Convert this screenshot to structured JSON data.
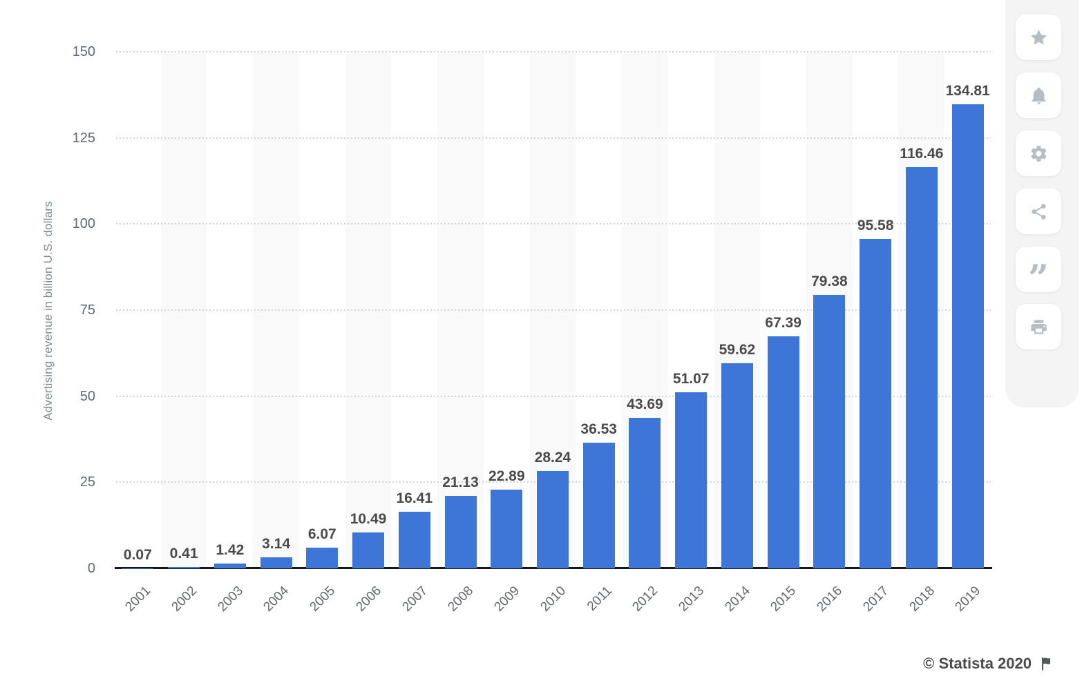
{
  "chart_data": {
    "type": "bar",
    "title": "",
    "categories": [
      "2001",
      "2002",
      "2003",
      "2004",
      "2005",
      "2006",
      "2007",
      "2008",
      "2009",
      "2010",
      "2011",
      "2012",
      "2013",
      "2014",
      "2015",
      "2016",
      "2017",
      "2018",
      "2019"
    ],
    "values": [
      0.07,
      0.41,
      1.42,
      3.14,
      6.07,
      10.49,
      16.41,
      21.13,
      22.89,
      28.24,
      36.53,
      43.69,
      51.07,
      59.62,
      67.39,
      79.38,
      95.58,
      116.46,
      134.81
    ],
    "xlabel": "",
    "ylabel": "Advertising revenue in billion U.S. dollars",
    "ylim": [
      0,
      150
    ],
    "yticks": [
      0,
      25,
      50,
      75,
      100,
      125,
      150
    ],
    "grid": "horizontal-dotted",
    "legend": "none",
    "bar_color": "#3d76d6",
    "stripe_color": "#f9f9f9",
    "value_label_decimals": 2
  },
  "toolbar": {
    "buttons": [
      {
        "name": "favorite",
        "icon": "star-icon"
      },
      {
        "name": "notifications",
        "icon": "bell-icon"
      },
      {
        "name": "settings",
        "icon": "gear-icon"
      },
      {
        "name": "share",
        "icon": "share-icon"
      },
      {
        "name": "cite",
        "icon": "quote-icon",
        "glyph": "”"
      },
      {
        "name": "print",
        "icon": "print-icon"
      }
    ]
  },
  "footer": {
    "credit": "© Statista 2020",
    "flag_icon": "flag-icon"
  }
}
